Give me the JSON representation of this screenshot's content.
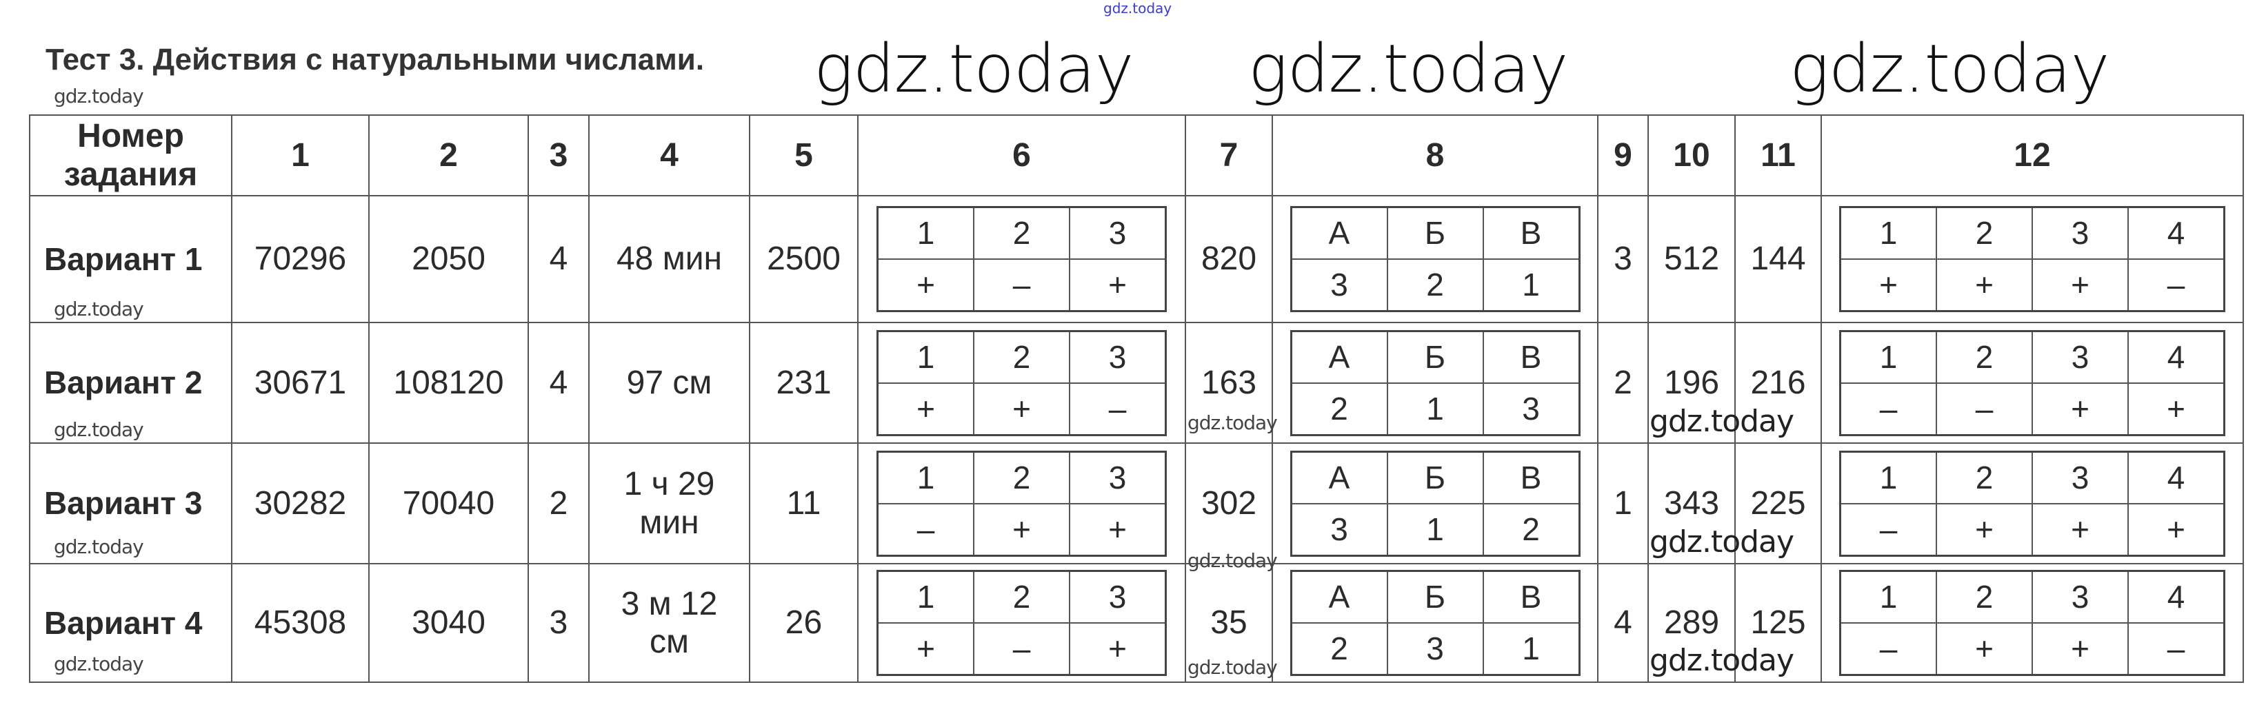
{
  "top_watermark": "gdz.today",
  "title": "Тест 3. Действия с натуральными числами.",
  "watermark": "gdz.today",
  "table": {
    "header": [
      "Номер задания",
      "1",
      "2",
      "3",
      "4",
      "5",
      "6",
      "7",
      "8",
      "9",
      "10",
      "11",
      "12"
    ],
    "rows": [
      {
        "label": "Вариант 1",
        "c1": "70296",
        "c2": "2050",
        "c3": "4",
        "c4": "48 мин",
        "c5": "2500",
        "c6": {
          "head": [
            "1",
            "2",
            "3"
          ],
          "vals": [
            "+",
            "–",
            "+"
          ]
        },
        "c7": "820",
        "c8": {
          "head": [
            "А",
            "Б",
            "В"
          ],
          "vals": [
            "3",
            "2",
            "1"
          ]
        },
        "c9": "3",
        "c10": "512",
        "c11": "144",
        "c12": {
          "head": [
            "1",
            "2",
            "3",
            "4"
          ],
          "vals": [
            "+",
            "+",
            "+",
            "–"
          ]
        }
      },
      {
        "label": "Вариант 2",
        "c1": "30671",
        "c2": "108120",
        "c3": "4",
        "c4": "97 см",
        "c5": "231",
        "c6": {
          "head": [
            "1",
            "2",
            "3"
          ],
          "vals": [
            "+",
            "+",
            "–"
          ]
        },
        "c7": "163",
        "c8": {
          "head": [
            "А",
            "Б",
            "В"
          ],
          "vals": [
            "2",
            "1",
            "3"
          ]
        },
        "c9": "2",
        "c10": "196",
        "c11": "216",
        "c12": {
          "head": [
            "1",
            "2",
            "3",
            "4"
          ],
          "vals": [
            "–",
            "–",
            "+",
            "+"
          ]
        }
      },
      {
        "label": "Вариант 3",
        "c1": "30282",
        "c2": "70040",
        "c3": "2",
        "c4": "1 ч 29 мин",
        "c5": "11",
        "c6": {
          "head": [
            "1",
            "2",
            "3"
          ],
          "vals": [
            "–",
            "+",
            "+"
          ]
        },
        "c7": "302",
        "c8": {
          "head": [
            "А",
            "Б",
            "В"
          ],
          "vals": [
            "3",
            "1",
            "2"
          ]
        },
        "c9": "1",
        "c10": "343",
        "c11": "225",
        "c12": {
          "head": [
            "1",
            "2",
            "3",
            "4"
          ],
          "vals": [
            "–",
            "+",
            "+",
            "+"
          ]
        }
      },
      {
        "label": "Вариант 4",
        "c1": "45308",
        "c2": "3040",
        "c3": "3",
        "c4": "3 м 12 см",
        "c5": "26",
        "c6": {
          "head": [
            "1",
            "2",
            "3"
          ],
          "vals": [
            "+",
            "–",
            "+"
          ]
        },
        "c7": "35",
        "c8": {
          "head": [
            "А",
            "Б",
            "В"
          ],
          "vals": [
            "2",
            "3",
            "1"
          ]
        },
        "c9": "4",
        "c10": "289",
        "c11": "125",
        "c12": {
          "head": [
            "1",
            "2",
            "3",
            "4"
          ],
          "vals": [
            "–",
            "+",
            "+",
            "–"
          ]
        }
      }
    ]
  }
}
